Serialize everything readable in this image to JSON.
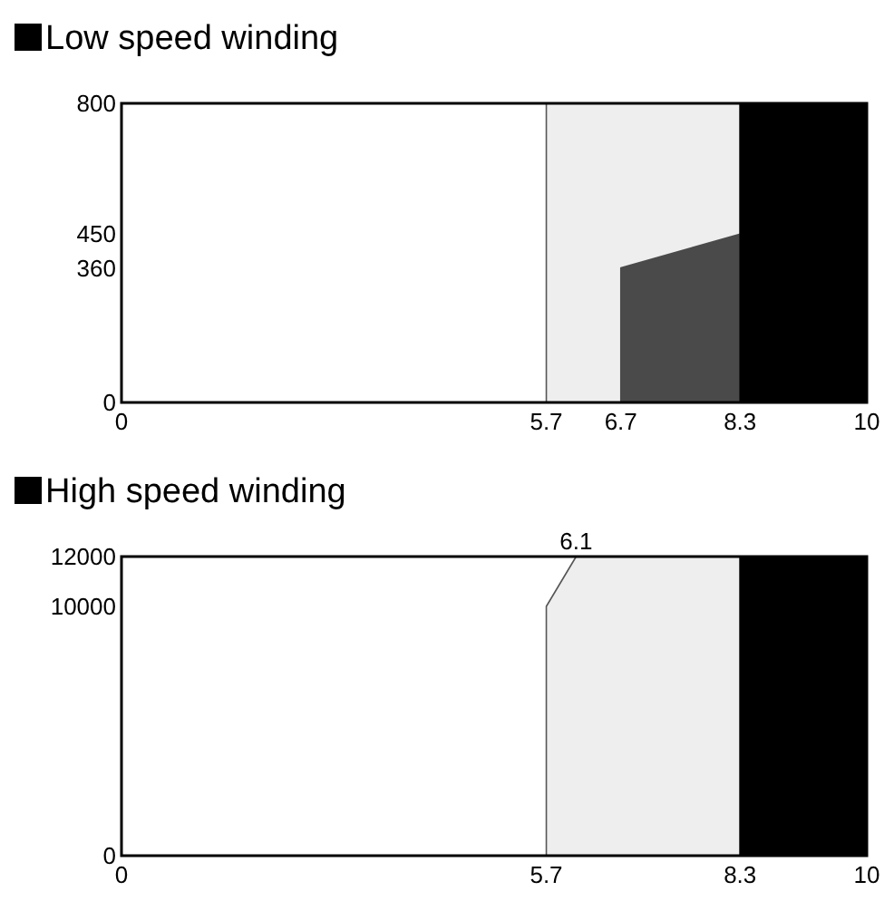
{
  "chart_data": [
    {
      "type": "area",
      "title": "Low speed winding",
      "xlim": [
        0,
        10
      ],
      "ylim": [
        0,
        800
      ],
      "xticks": [
        0,
        5.7,
        6.7,
        8.3,
        10
      ],
      "yticks": [
        0,
        360,
        450,
        800
      ],
      "series": [
        {
          "color": "#eeeeee",
          "x": [
            5.7,
            8.3
          ],
          "values": [
            800,
            800
          ]
        },
        {
          "color": "#4a4a4a",
          "x": [
            6.7,
            8.3
          ],
          "values": [
            360,
            450
          ]
        },
        {
          "color": "#000000",
          "x": [
            8.3,
            10
          ],
          "values": [
            800,
            800
          ]
        }
      ]
    },
    {
      "type": "area",
      "title": "High speed winding",
      "xlim": [
        0,
        10
      ],
      "ylim": [
        0,
        12000
      ],
      "xticks": [
        0,
        5.7,
        8.3,
        10
      ],
      "yticks": [
        0,
        10000,
        12000
      ],
      "series": [
        {
          "color": "#eeeeee",
          "x": [
            5.7,
            6.1,
            8.3
          ],
          "values": [
            10000,
            12000,
            12000
          ]
        },
        {
          "color": "#000000",
          "x": [
            8.3,
            10
          ],
          "values": [
            12000,
            12000
          ]
        }
      ],
      "annotations": [
        {
          "text": "6.1",
          "x": 6.1,
          "y": 12000
        }
      ]
    }
  ]
}
